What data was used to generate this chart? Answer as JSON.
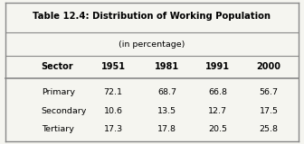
{
  "title": "Table 12.4: Distribution of Working Population",
  "subtitle": "(in percentage)",
  "columns": [
    "Sector",
    "1951",
    "1981",
    "1991",
    "2000"
  ],
  "rows": [
    [
      "Primary",
      "72.1",
      "68.7",
      "66.8",
      "56.7"
    ],
    [
      "Secondary",
      "10.6",
      "13.5",
      "12.7",
      "17.5"
    ],
    [
      "Tertiary",
      "17.3",
      "17.8",
      "20.5",
      "25.8"
    ]
  ],
  "bg_color": "#f5f5f0",
  "border_color": "#888888"
}
